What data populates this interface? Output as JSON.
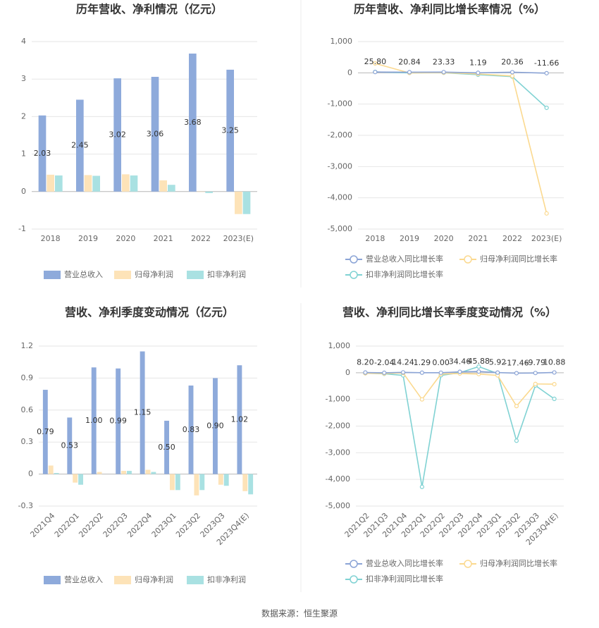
{
  "chart_data": [
    {
      "type": "bar",
      "title": "历年营收、净利情况（亿元）",
      "categories": [
        "2018",
        "2019",
        "2020",
        "2021",
        "2022",
        "2023(E)"
      ],
      "series": [
        {
          "name": "营业总收入",
          "color": "#8eaadb",
          "values": [
            2.03,
            2.45,
            3.02,
            3.06,
            3.68,
            3.25
          ],
          "value_labels": [
            "2.03",
            "2.45",
            "3.02",
            "3.06",
            "3.68",
            "3.25"
          ]
        },
        {
          "name": "归母净利润",
          "color": "#fde3b8",
          "values": [
            0.45,
            0.44,
            0.46,
            0.3,
            -0.01,
            -0.6
          ]
        },
        {
          "name": "扣非净利润",
          "color": "#a9e1e2",
          "values": [
            0.43,
            0.42,
            0.43,
            0.18,
            -0.04,
            -0.6
          ]
        }
      ],
      "ylim": [
        -1,
        4
      ],
      "yticks": [
        -1,
        0,
        1,
        2,
        3,
        4
      ],
      "grid": true
    },
    {
      "type": "line",
      "title": "历年营收、净利同比增长率情况（%）",
      "categories": [
        "2018",
        "2019",
        "2020",
        "2021",
        "2022",
        "2023(E)"
      ],
      "series": [
        {
          "name": "营业总收入同比增长率",
          "color": "#8ba4d6",
          "values": [
            25.8,
            20.84,
            23.33,
            1.19,
            20.36,
            -11.66
          ],
          "value_labels": [
            "25.80",
            "20.84",
            "23.33",
            "1.19",
            "20.36",
            "-11.66"
          ]
        },
        {
          "name": "归母净利润同比增长率",
          "color": "#fbd98f",
          "values": [
            300,
            -3,
            5,
            -35,
            -100,
            -4500
          ]
        },
        {
          "name": "扣非净利润同比增长率",
          "color": "#80d2d3",
          "values": [
            30,
            -2,
            2,
            -58,
            -122,
            -1120
          ]
        }
      ],
      "ylim": [
        -5000,
        1000
      ],
      "yticks": [
        {
          "value": -5000,
          "label": "-5,000"
        },
        {
          "value": -4000,
          "label": "-4,000"
        },
        {
          "value": -3000,
          "label": "-3,000"
        },
        {
          "value": -2000,
          "label": "-2,000"
        },
        {
          "value": -1000,
          "label": "-1,000"
        },
        0,
        {
          "value": 1000,
          "label": "1,000"
        }
      ],
      "grid": true
    },
    {
      "type": "bar",
      "title": "营收、净利季度变动情况（亿元）",
      "categories": [
        "2021Q4",
        "2022Q1",
        "2022Q2",
        "2022Q3",
        "2022Q4",
        "2023Q1",
        "2023Q2",
        "2023Q3",
        "2023Q4(E)"
      ],
      "series": [
        {
          "name": "营业总收入",
          "color": "#8eaadb",
          "values": [
            0.79,
            0.53,
            1.0,
            0.99,
            1.15,
            0.5,
            0.83,
            0.9,
            1.02
          ],
          "value_labels": [
            "0.79",
            "0.53",
            "1.00",
            "0.99",
            "1.15",
            "0.50",
            "0.83",
            "0.90",
            "1.02"
          ]
        },
        {
          "name": "归母净利润",
          "color": "#fde3b8",
          "values": [
            0.08,
            -0.08,
            0.02,
            0.03,
            0.04,
            -0.15,
            -0.2,
            -0.1,
            -0.16
          ]
        },
        {
          "name": "扣非净利润",
          "color": "#a9e1e2",
          "values": [
            0.01,
            -0.1,
            0.0,
            0.03,
            0.02,
            -0.15,
            -0.15,
            -0.11,
            -0.19
          ]
        }
      ],
      "ylim": [
        -0.3,
        1.2
      ],
      "yticks": [
        -0.3,
        0,
        0.3,
        0.6,
        0.9,
        1.2
      ],
      "grid": true
    },
    {
      "type": "line",
      "title": "营收、净利同比增长率季度变动情况（%）",
      "categories": [
        "2021Q2",
        "2021Q3",
        "2021Q4",
        "2022Q1",
        "2022Q2",
        "2022Q3",
        "2022Q4",
        "2023Q1",
        "2023Q2",
        "2023Q3",
        "2023Q4(E)"
      ],
      "series": [
        {
          "name": "营业总收入同比增长率",
          "color": "#8ba4d6",
          "values": [
            8.2,
            -2.04,
            14.24,
            1.29,
            0.0,
            34.46,
            45.88,
            5.92,
            -17.46,
            -9.79,
            10.88
          ],
          "value_labels": [
            "8.20",
            "-2.04",
            "14.24",
            "1.29",
            "0.00",
            "34.46",
            "45.88",
            "5.92",
            "-17.46",
            "-9.79",
            "10.88"
          ]
        },
        {
          "name": "归母净利润同比增长率",
          "color": "#fbd98f",
          "values": [
            -20,
            -30,
            -10,
            -1000,
            -50,
            -30,
            -50,
            -100,
            -1250,
            -420,
            -430
          ]
        },
        {
          "name": "扣非净利润同比增长率",
          "color": "#80d2d3",
          "values": [
            -20,
            -40,
            -100,
            -4280,
            -100,
            0,
            230,
            -30,
            -2550,
            -480,
            -980
          ]
        }
      ],
      "ylim": [
        -5000,
        1000
      ],
      "yticks": [
        {
          "value": -5000,
          "label": "-5,000"
        },
        {
          "value": -4000,
          "label": "-4,000"
        },
        {
          "value": -3000,
          "label": "-3,000"
        },
        {
          "value": -2000,
          "label": "-2,000"
        },
        {
          "value": -1000,
          "label": "-1,000"
        },
        0,
        {
          "value": 1000,
          "label": "1,000"
        }
      ],
      "grid": true
    }
  ],
  "source": "数据来源：恒生聚源"
}
